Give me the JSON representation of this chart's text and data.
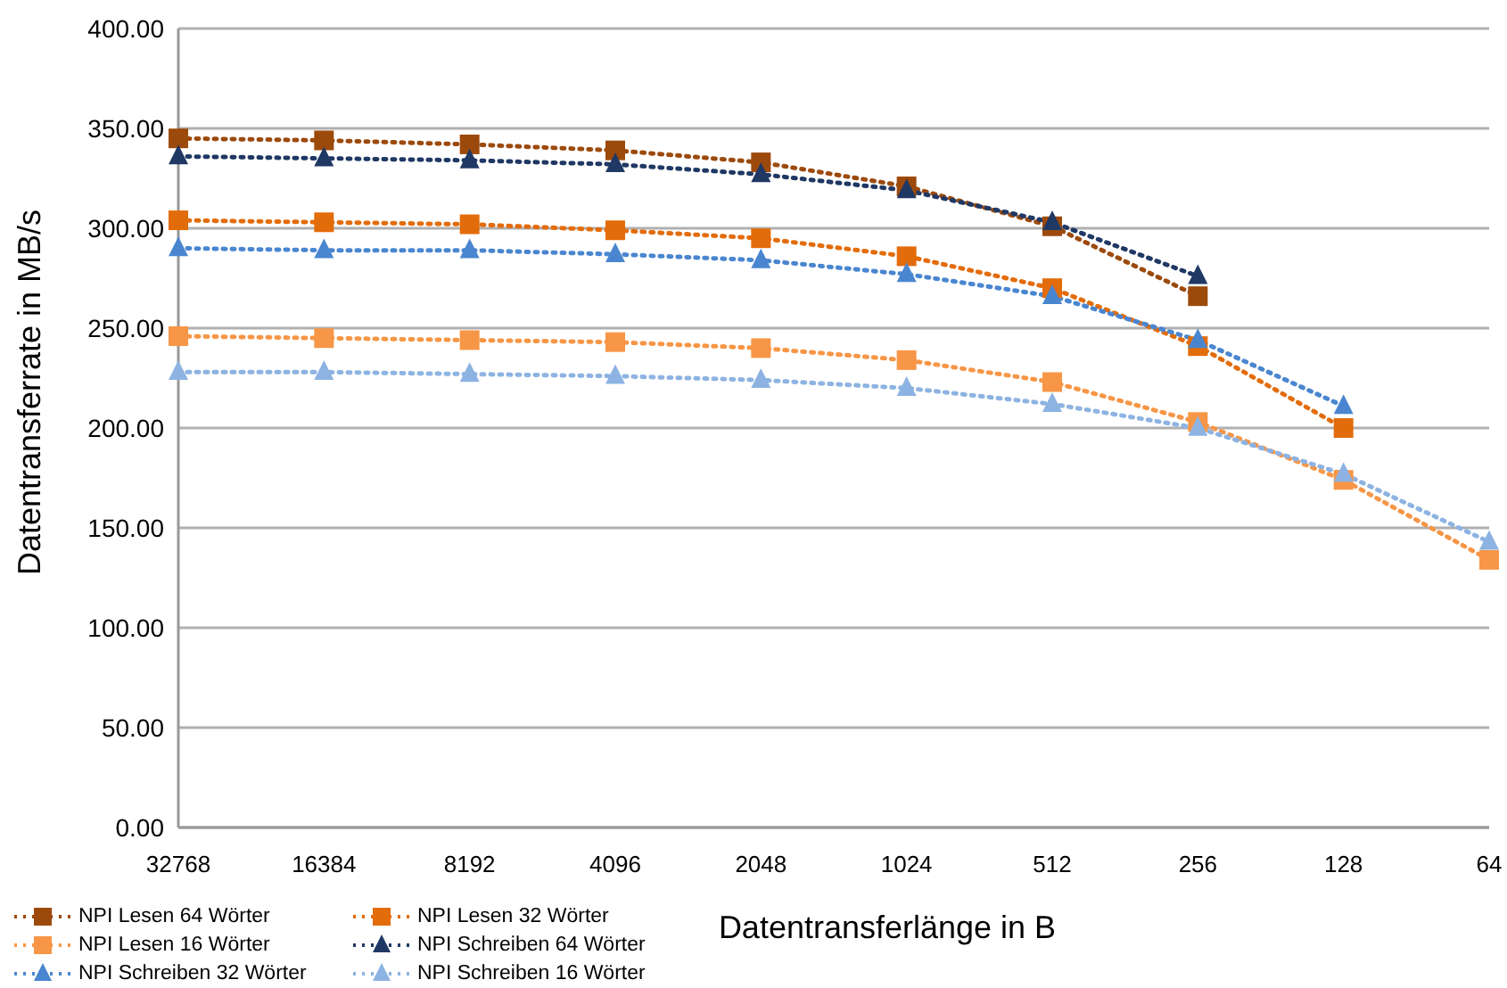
{
  "chart_data": {
    "type": "line",
    "xlabel": "Datentransferlänge in B",
    "ylabel": "Datentransferrate in MB/s",
    "categories": [
      "32768",
      "16384",
      "8192",
      "4096",
      "2048",
      "1024",
      "512",
      "256",
      "128",
      "64"
    ],
    "series": [
      {
        "name": "NPI Lesen 64 Wörter",
        "color": "#9c4a0c",
        "marker": "square",
        "values": [
          345,
          344,
          342,
          339,
          333,
          321,
          301,
          266,
          null,
          null
        ]
      },
      {
        "name": "NPI Lesen 32 Wörter",
        "color": "#e36c0a",
        "marker": "square",
        "values": [
          304,
          303,
          302,
          299,
          295,
          286,
          270,
          241,
          200,
          null
        ]
      },
      {
        "name": "NPI Lesen 16 Wörter",
        "color": "#f79646",
        "marker": "square",
        "values": [
          246,
          245,
          244,
          243,
          240,
          234,
          223,
          203,
          174,
          134
        ]
      },
      {
        "name": "NPI Schreiben 64 Wörter",
        "color": "#1f3864",
        "marker": "triangle",
        "values": [
          336,
          335,
          334,
          332,
          327,
          319,
          303,
          276,
          null,
          null
        ]
      },
      {
        "name": "NPI Schreiben 32 Wörter",
        "color": "#4a86d0",
        "marker": "triangle",
        "values": [
          290,
          289,
          289,
          287,
          284,
          277,
          266,
          244,
          211,
          null
        ]
      },
      {
        "name": "NPI Schreiben 16 Wörter",
        "color": "#8db3e2",
        "marker": "triangle",
        "values": [
          228,
          228,
          227,
          226,
          224,
          220,
          212,
          200,
          177,
          143
        ]
      }
    ],
    "ylim": [
      0,
      400
    ],
    "yticks": [
      {
        "value": 0,
        "label": "0.00"
      },
      {
        "value": 50,
        "label": "50.00"
      },
      {
        "value": 100,
        "label": "100.00"
      },
      {
        "value": 150,
        "label": "150.00"
      },
      {
        "value": 200,
        "label": "200.00"
      },
      {
        "value": 250,
        "label": "250.00"
      },
      {
        "value": 300,
        "label": "300.00"
      },
      {
        "value": 350,
        "label": "350.00"
      },
      {
        "value": 400,
        "label": "400.00"
      }
    ],
    "grid": "y",
    "legend": "bottom left",
    "line_style": "dotted"
  }
}
